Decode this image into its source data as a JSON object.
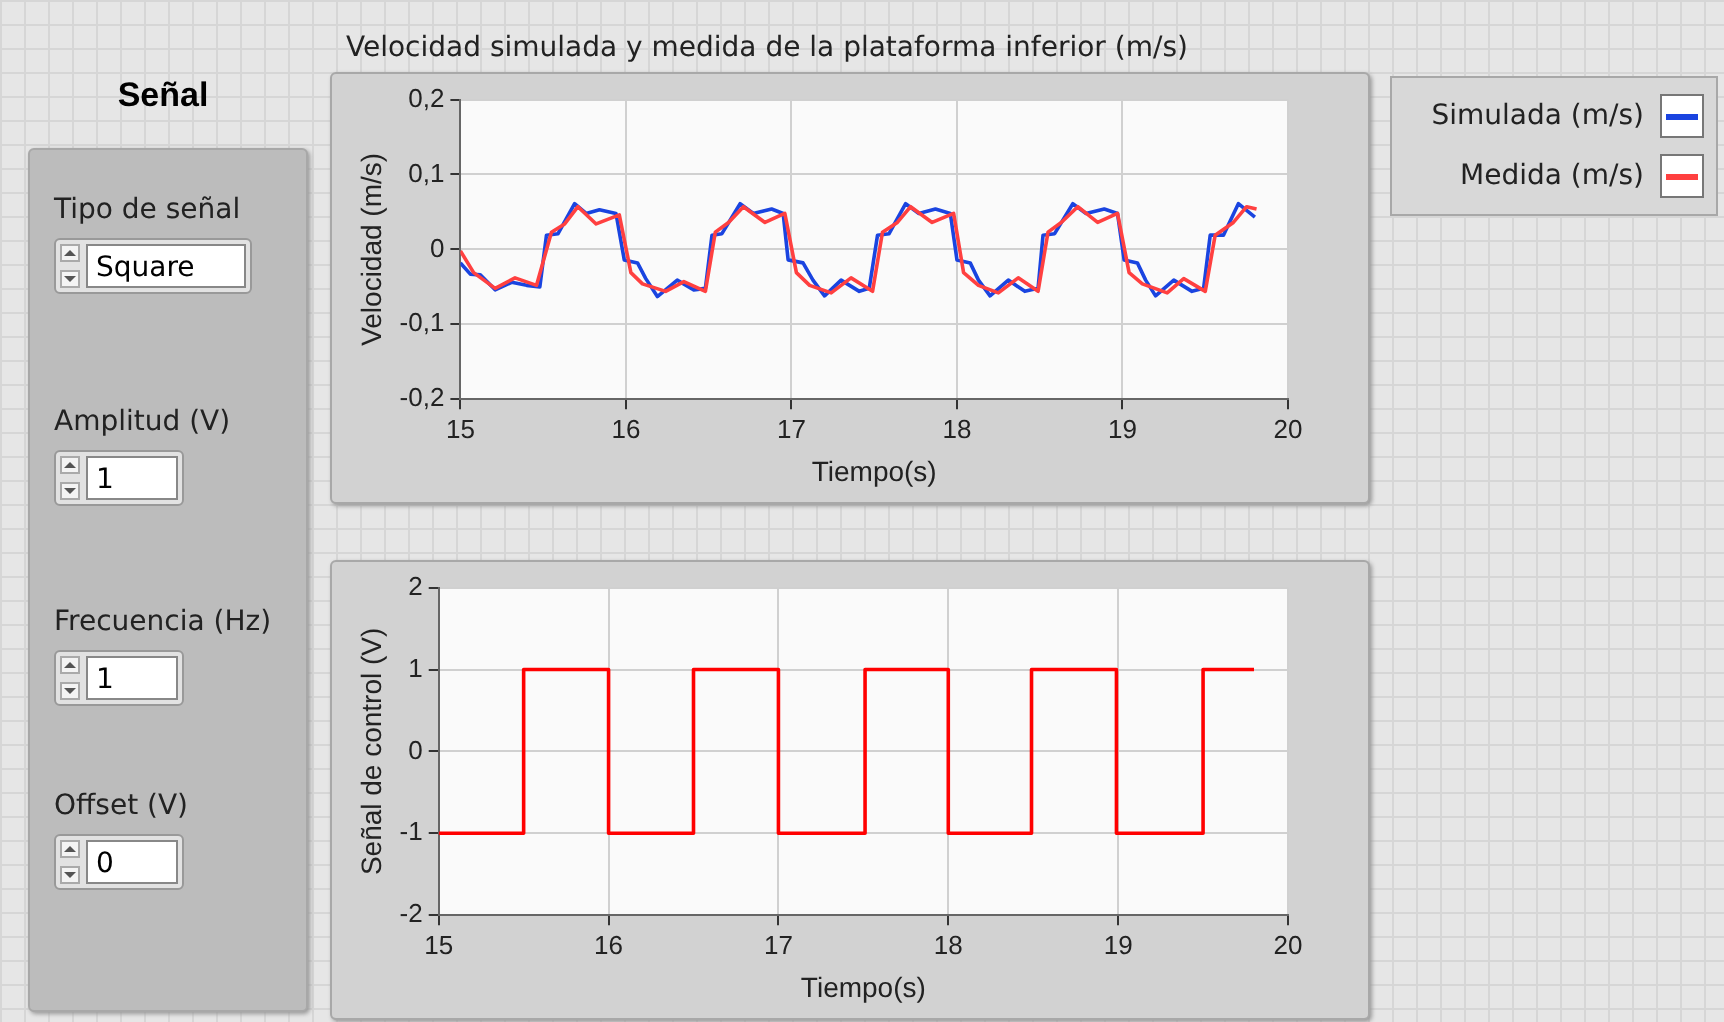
{
  "chart_data": [
    {
      "type": "other",
      "title": "Señal",
      "annotations": [
        "Tipo de señal",
        "Square",
        "Amplitud (V)",
        "1",
        "Frecuencia (Hz)",
        "1",
        "Offset (V)",
        "0"
      ]
    },
    {
      "type": "line",
      "title": "Velocidad simulada y medida de la plataforma inferior (m/s)",
      "xlabel": "Tiempo(s)",
      "ylabel": "Velocidad (m/s)",
      "xlim": [
        15,
        20
      ],
      "xticks": [
        15,
        16,
        17,
        18,
        19,
        20
      ],
      "ylim": [
        -0.2,
        0.2
      ],
      "yticks": [
        {
          "value": -0.2,
          "label": "-0,2"
        },
        {
          "value": -0.1,
          "label": "-0,1"
        },
        0,
        {
          "value": 0.1,
          "label": "0,1"
        },
        {
          "value": 0.2,
          "label": "0,2"
        }
      ],
      "grid": true,
      "legend": "right",
      "marker": "none",
      "series": [
        {
          "name": "Medida (m/s)",
          "color": "#ff4040",
          "x": [
            15.0,
            15.08,
            15.21,
            15.33,
            15.46,
            15.55,
            15.63,
            15.71,
            15.82,
            15.96,
            16.03,
            16.1,
            16.24,
            16.35,
            16.48,
            16.54,
            16.62,
            16.71,
            16.84,
            16.96,
            17.03,
            17.11,
            17.24,
            17.36,
            17.49,
            17.55,
            17.64,
            17.72,
            17.85,
            17.98,
            18.04,
            18.13,
            18.25,
            18.37,
            18.49,
            18.55,
            18.63,
            18.73,
            18.85,
            18.97,
            19.04,
            19.12,
            19.27,
            19.37,
            19.5,
            19.56,
            19.67,
            19.75,
            19.81
          ],
          "values": [
            -0.002,
            -0.031,
            -0.052,
            -0.038,
            -0.048,
            0.023,
            0.034,
            0.057,
            0.034,
            0.046,
            -0.031,
            -0.046,
            -0.056,
            -0.043,
            -0.056,
            0.023,
            0.036,
            0.057,
            0.036,
            0.048,
            -0.031,
            -0.048,
            -0.058,
            -0.038,
            -0.056,
            0.023,
            0.036,
            0.057,
            0.036,
            0.048,
            -0.031,
            -0.048,
            -0.058,
            -0.038,
            -0.056,
            0.023,
            0.036,
            0.057,
            0.036,
            0.048,
            -0.031,
            -0.046,
            -0.058,
            -0.039,
            -0.056,
            0.019,
            0.036,
            0.057,
            0.054
          ]
        },
        {
          "name": "Simulada (m/s)",
          "color": "#1a44e0",
          "x": [
            15.0,
            15.06,
            15.12,
            15.21,
            15.31,
            15.4,
            15.48,
            15.52,
            15.59,
            15.69,
            15.76,
            15.84,
            15.94,
            15.99,
            16.07,
            16.12,
            16.19,
            16.31,
            16.41,
            16.48,
            16.52,
            16.58,
            16.69,
            16.77,
            16.88,
            16.95,
            16.98,
            17.07,
            17.13,
            17.2,
            17.3,
            17.41,
            17.47,
            17.52,
            17.59,
            17.69,
            17.77,
            17.87,
            17.96,
            18.0,
            18.08,
            18.13,
            18.2,
            18.31,
            18.41,
            18.49,
            18.52,
            18.59,
            18.7,
            18.78,
            18.89,
            18.97,
            19.01,
            19.09,
            19.14,
            19.2,
            19.31,
            19.42,
            19.49,
            19.53,
            19.61,
            19.7,
            19.8
          ],
          "values": [
            -0.018,
            -0.033,
            -0.034,
            -0.054,
            -0.044,
            -0.048,
            -0.05,
            0.019,
            0.021,
            0.061,
            0.048,
            0.053,
            0.048,
            -0.014,
            -0.018,
            -0.039,
            -0.063,
            -0.041,
            -0.054,
            -0.052,
            0.019,
            0.021,
            0.061,
            0.048,
            0.054,
            0.048,
            -0.014,
            -0.018,
            -0.041,
            -0.062,
            -0.041,
            -0.056,
            -0.052,
            0.019,
            0.021,
            0.061,
            0.048,
            0.054,
            0.048,
            -0.014,
            -0.018,
            -0.041,
            -0.062,
            -0.041,
            -0.056,
            -0.052,
            0.019,
            0.021,
            0.061,
            0.048,
            0.054,
            0.048,
            -0.014,
            -0.018,
            -0.041,
            -0.062,
            -0.041,
            -0.056,
            -0.052,
            0.019,
            0.019,
            0.061,
            0.043
          ]
        }
      ]
    },
    {
      "type": "step",
      "xlabel": "Tiempo(s)",
      "ylabel": "Señal de control (V)",
      "xlim": [
        15,
        20
      ],
      "xticks": [
        15,
        16,
        17,
        18,
        19,
        20
      ],
      "ylim": [
        -2,
        2
      ],
      "yticks": [
        -2,
        -1,
        0,
        1,
        2
      ],
      "grid": true,
      "marker": "none",
      "series": [
        {
          "color": "#ff0000",
          "x": [
            15.0,
            15.5,
            16.0,
            16.5,
            17.0,
            17.51,
            18.0,
            18.49,
            18.99,
            19.5,
            19.8
          ],
          "values": [
            -1,
            1,
            -1,
            1,
            -1,
            1,
            -1,
            1,
            -1,
            1,
            1
          ]
        }
      ]
    }
  ]
}
